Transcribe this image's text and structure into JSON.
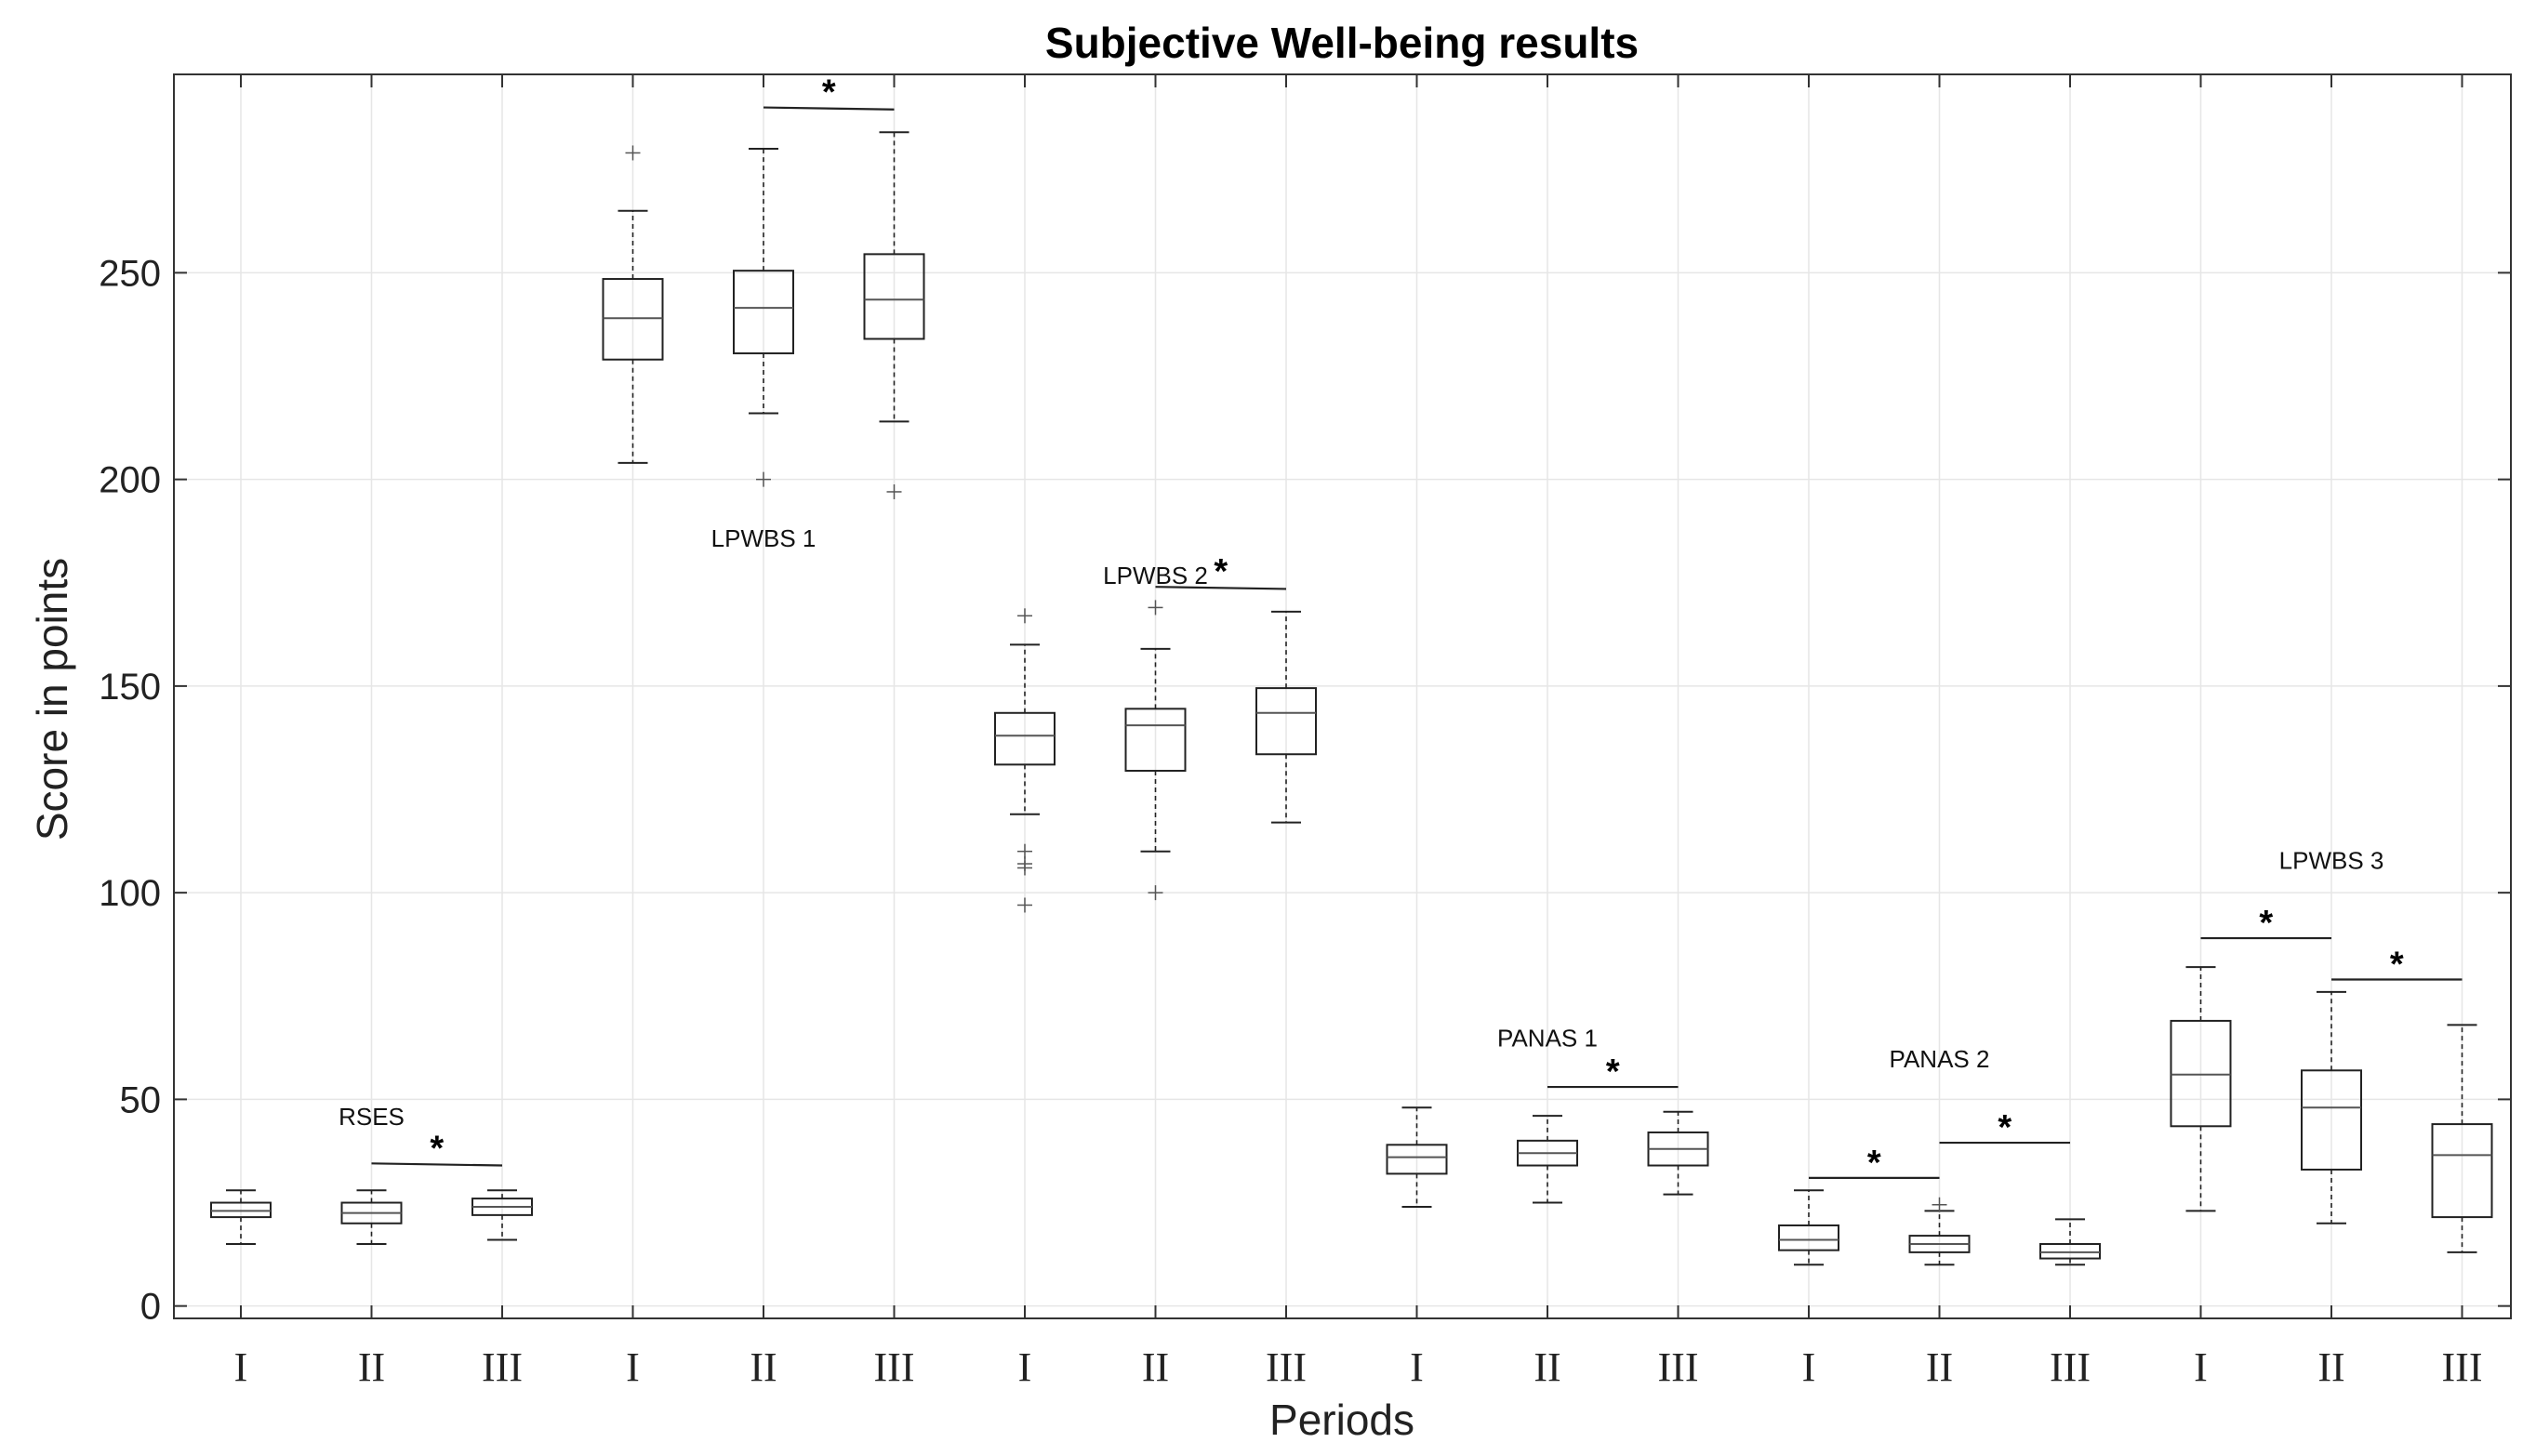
{
  "chart_data": {
    "type": "box",
    "title": "Subjective Well-being results",
    "xlabel": "Periods",
    "ylabel": "Score in points",
    "ylim": [
      -3,
      298
    ],
    "yticks": [
      0,
      50,
      100,
      150,
      200,
      250
    ],
    "ytick_labels": [
      "0",
      "50",
      "100",
      "150",
      "200",
      "250"
    ],
    "grid": true,
    "categories": [
      "I",
      "II",
      "III",
      "I",
      "II",
      "III",
      "I",
      "II",
      "III",
      "I",
      "II",
      "III",
      "I",
      "II",
      "III",
      "I",
      "II",
      "III"
    ],
    "boxes": [
      {
        "label": "I",
        "group": "RSES",
        "whisker_low": 15,
        "q1": 21.5,
        "median": 23,
        "q3": 25,
        "whisker_high": 28,
        "outliers": []
      },
      {
        "label": "II",
        "group": "RSES",
        "whisker_low": 15,
        "q1": 20,
        "median": 22.5,
        "q3": 25,
        "whisker_high": 28,
        "outliers": []
      },
      {
        "label": "III",
        "group": "RSES",
        "whisker_low": 16,
        "q1": 22,
        "median": 24,
        "q3": 26,
        "whisker_high": 28,
        "outliers": []
      },
      {
        "label": "I",
        "group": "LPWBS 1",
        "whisker_low": 204,
        "q1": 229,
        "median": 239,
        "q3": 248.5,
        "whisker_high": 265,
        "outliers": [
          279
        ]
      },
      {
        "label": "II",
        "group": "LPWBS 1",
        "whisker_low": 216,
        "q1": 230.5,
        "median": 241.5,
        "q3": 250.5,
        "whisker_high": 280,
        "outliers": [
          200
        ]
      },
      {
        "label": "III",
        "group": "LPWBS 1",
        "whisker_low": 214,
        "q1": 234,
        "median": 243.5,
        "q3": 254.5,
        "whisker_high": 284,
        "outliers": [
          197
        ]
      },
      {
        "label": "I",
        "group": "LPWBS 2",
        "whisker_low": 119,
        "q1": 131,
        "median": 138,
        "q3": 143.5,
        "whisker_high": 160,
        "outliers": [
          167,
          110,
          107,
          106,
          97
        ]
      },
      {
        "label": "II",
        "group": "LPWBS 2",
        "whisker_low": 110,
        "q1": 129.5,
        "median": 140.5,
        "q3": 144.5,
        "whisker_high": 159,
        "outliers": [
          169,
          100
        ]
      },
      {
        "label": "III",
        "group": "LPWBS 2",
        "whisker_low": 117,
        "q1": 133.5,
        "median": 143.5,
        "q3": 149.5,
        "whisker_high": 168,
        "outliers": []
      },
      {
        "label": "I",
        "group": "PANAS 1",
        "whisker_low": 24,
        "q1": 32,
        "median": 36,
        "q3": 39,
        "whisker_high": 48,
        "outliers": []
      },
      {
        "label": "II",
        "group": "PANAS 1",
        "whisker_low": 25,
        "q1": 34,
        "median": 37,
        "q3": 40,
        "whisker_high": 46,
        "outliers": []
      },
      {
        "label": "III",
        "group": "PANAS 1",
        "whisker_low": 27,
        "q1": 34,
        "median": 38,
        "q3": 42,
        "whisker_high": 47,
        "outliers": []
      },
      {
        "label": "I",
        "group": "PANAS 2",
        "whisker_low": 10,
        "q1": 13.5,
        "median": 16,
        "q3": 19.5,
        "whisker_high": 28,
        "outliers": []
      },
      {
        "label": "II",
        "group": "PANAS 2",
        "whisker_low": 10,
        "q1": 13,
        "median": 15,
        "q3": 17,
        "whisker_high": 23,
        "outliers": [
          24.5
        ]
      },
      {
        "label": "III",
        "group": "PANAS 2",
        "whisker_low": 10,
        "q1": 11.5,
        "median": 13,
        "q3": 15,
        "whisker_high": 21,
        "outliers": []
      },
      {
        "label": "I",
        "group": "LPWBS 3",
        "whisker_low": 23,
        "q1": 43.5,
        "median": 56,
        "q3": 69,
        "whisker_high": 82,
        "outliers": []
      },
      {
        "label": "II",
        "group": "LPWBS 3",
        "whisker_low": 20,
        "q1": 33,
        "median": 48,
        "q3": 57,
        "whisker_high": 76,
        "outliers": []
      },
      {
        "label": "III",
        "group": "LPWBS 3",
        "whisker_low": 13,
        "q1": 21.5,
        "median": 36.5,
        "q3": 44,
        "whisker_high": 68,
        "outliers": []
      }
    ],
    "group_labels": [
      {
        "text": "RSES",
        "box_index": 1,
        "y": 46
      },
      {
        "text": "LPWBS 1",
        "box_index": 4,
        "y": 186
      },
      {
        "text": "LPWBS 2",
        "box_index": 7,
        "y": 177
      },
      {
        "text": "PANAS 1",
        "box_index": 10,
        "y": 65
      },
      {
        "text": "PANAS 2",
        "box_index": 13,
        "y": 60
      },
      {
        "text": "LPWBS 3",
        "box_index": 16,
        "y": 108
      }
    ],
    "significance": [
      {
        "from": 1,
        "to": 2,
        "y": 34.5,
        "y_end": 34,
        "marker": "*"
      },
      {
        "from": 4,
        "to": 5,
        "y": 290,
        "y_end": 289.5,
        "marker": "*"
      },
      {
        "from": 7,
        "to": 8,
        "y": 174,
        "y_end": 173.5,
        "marker": "*"
      },
      {
        "from": 10,
        "to": 11,
        "y": 53,
        "y_end": 53,
        "marker": "*"
      },
      {
        "from": 12,
        "to": 13,
        "y": 31,
        "y_end": 31,
        "marker": "*"
      },
      {
        "from": 13,
        "to": 14,
        "y": 39.5,
        "y_end": 39.5,
        "marker": "*"
      },
      {
        "from": 15,
        "to": 16,
        "y": 89,
        "y_end": 89,
        "marker": "*"
      },
      {
        "from": 16,
        "to": 17,
        "y": 79,
        "y_end": 79,
        "marker": "*"
      }
    ]
  }
}
